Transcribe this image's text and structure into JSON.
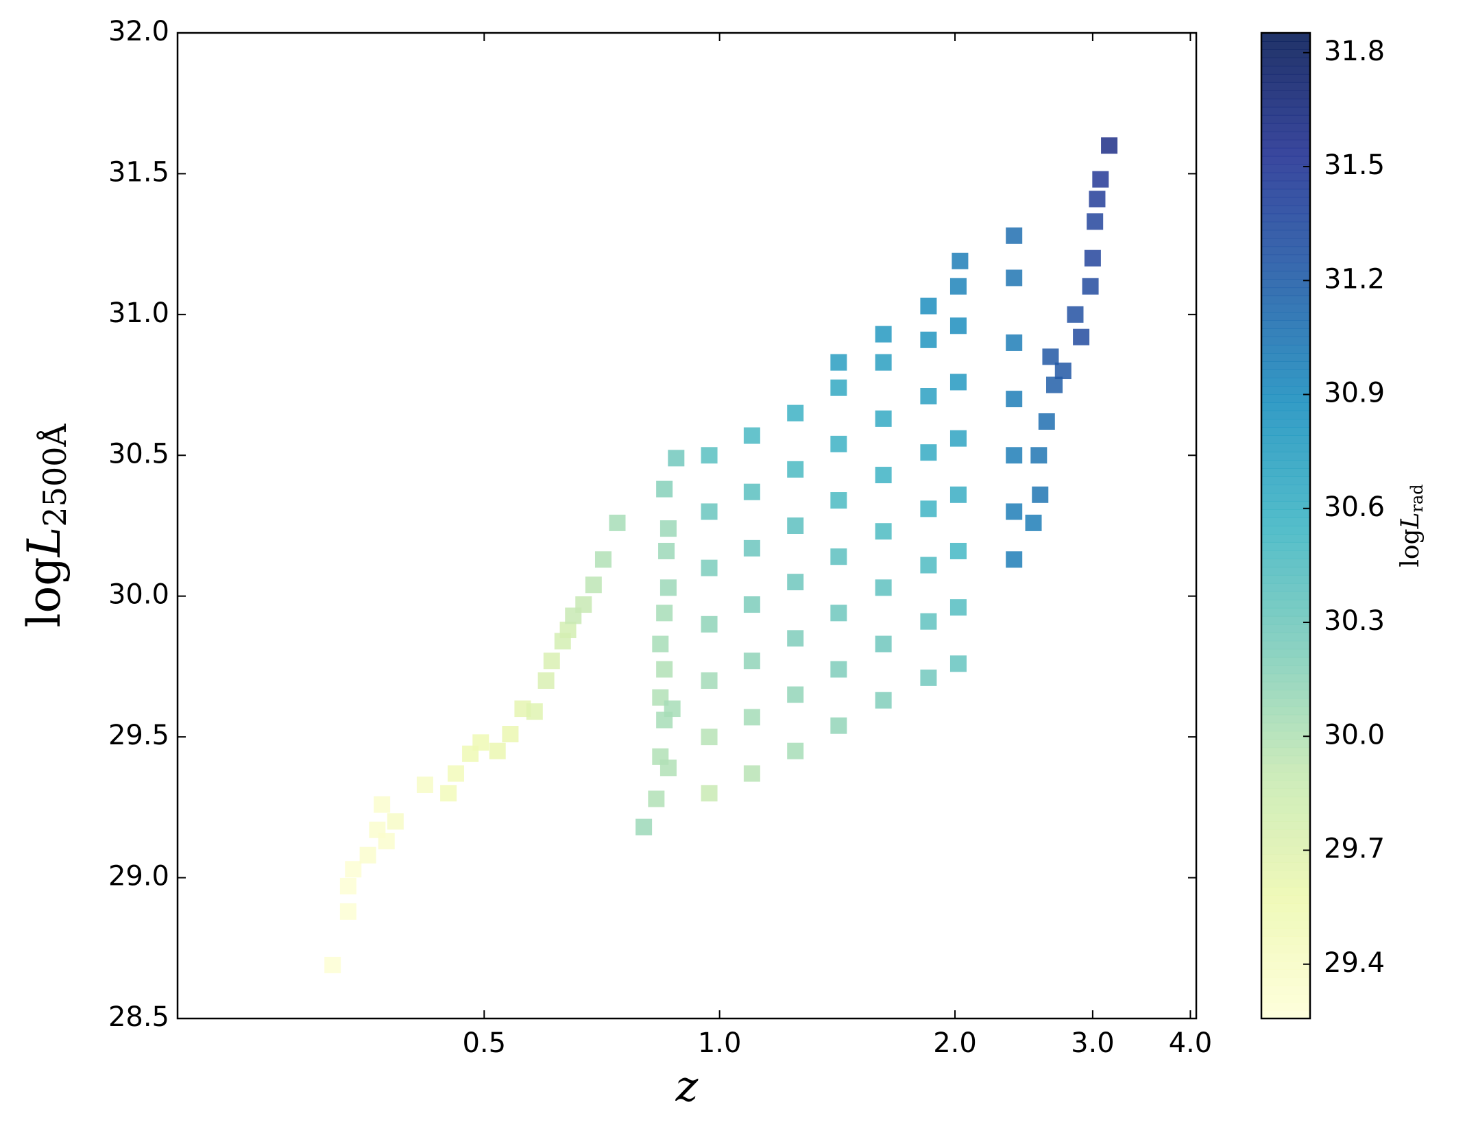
{
  "chart_data": {
    "type": "scatter",
    "xlabel": "z",
    "ylabel": [
      "log",
      "L",
      "2500Å"
    ],
    "colorbar_label": [
      "log",
      "L",
      "rad"
    ],
    "log_x": true,
    "xlim": [
      0.2027,
      4.07
    ],
    "xticks": [
      0.5,
      {
        "value": 1,
        "label": "1.0"
      },
      {
        "value": 2,
        "label": "2.0"
      },
      {
        "value": 3,
        "label": "3.0"
      },
      {
        "value": 4,
        "label": "4.0"
      }
    ],
    "ylim": [
      28.5,
      32.0
    ],
    "yticks": [
      28.5,
      {
        "value": 29,
        "label": "29.0"
      },
      29.5,
      {
        "value": 30,
        "label": "30.0"
      },
      30.5,
      {
        "value": 31,
        "label": "31.0"
      },
      31.5,
      {
        "value": 32,
        "label": "32.0"
      }
    ],
    "clim": [
      29.257,
      31.852
    ],
    "cticks": [
      29.4,
      29.7,
      {
        "value": 30,
        "label": "30.0"
      },
      30.3,
      30.6,
      30.9,
      31.2,
      31.5,
      31.8
    ],
    "colormap": [
      "#ffffd9",
      "#edf8b1",
      "#c7e9b4",
      "#7fcdbb",
      "#41b6c4",
      "#1d91c0",
      "#225ea8",
      "#253494",
      "#081d58"
    ],
    "x": [
      0.32,
      0.335,
      0.335,
      0.34,
      0.355,
      0.365,
      0.37,
      0.375,
      0.385,
      0.42,
      0.45,
      0.46,
      0.48,
      0.495,
      0.52,
      0.54,
      0.56,
      0.58,
      0.6,
      0.61,
      0.63,
      0.64,
      0.65,
      0.67,
      0.69,
      0.71,
      0.74,
      0.8,
      0.83,
      0.84,
      0.85,
      0.84,
      0.85,
      0.84,
      0.85,
      0.86,
      0.855,
      0.86,
      0.85,
      0.88,
      0.87,
      0.86,
      0.97,
      0.97,
      0.97,
      0.97,
      0.97,
      0.97,
      0.97,
      1.1,
      1.1,
      1.1,
      1.1,
      1.1,
      1.1,
      1.1,
      1.25,
      1.25,
      1.25,
      1.25,
      1.25,
      1.25,
      1.25,
      1.42,
      1.42,
      1.42,
      1.42,
      1.42,
      1.42,
      1.42,
      1.42,
      1.62,
      1.62,
      1.62,
      1.62,
      1.62,
      1.62,
      1.62,
      1.62,
      1.85,
      1.85,
      1.85,
      1.85,
      1.85,
      1.85,
      1.85,
      1.85,
      2.02,
      2.02,
      2.02,
      2.02,
      2.02,
      2.02,
      2.02,
      2.02,
      2.03,
      2.38,
      2.38,
      2.38,
      2.38,
      2.38,
      2.38,
      2.38,
      2.52,
      2.57,
      2.56,
      2.62,
      2.68,
      2.65,
      2.75,
      2.85,
      2.9,
      2.98,
      3.0,
      3.02,
      3.04,
      3.07,
      3.15
    ],
    "y": [
      28.69,
      28.88,
      28.97,
      29.03,
      29.08,
      29.17,
      29.26,
      29.13,
      29.2,
      29.33,
      29.3,
      29.37,
      29.44,
      29.48,
      29.45,
      29.51,
      29.6,
      29.59,
      29.7,
      29.77,
      29.84,
      29.88,
      29.93,
      29.97,
      30.04,
      30.13,
      30.26,
      29.18,
      29.28,
      29.43,
      29.56,
      29.64,
      29.74,
      29.83,
      29.94,
      30.03,
      30.16,
      30.24,
      30.38,
      30.49,
      29.6,
      29.39,
      29.3,
      29.5,
      29.7,
      29.9,
      30.1,
      30.3,
      30.5,
      29.37,
      29.57,
      29.77,
      29.97,
      30.17,
      30.37,
      30.57,
      29.45,
      29.65,
      29.85,
      30.05,
      30.25,
      30.45,
      30.65,
      29.54,
      29.74,
      29.94,
      30.14,
      30.34,
      30.54,
      30.74,
      30.83,
      29.63,
      29.83,
      30.03,
      30.23,
      30.43,
      30.63,
      30.83,
      30.93,
      29.71,
      29.91,
      30.11,
      30.31,
      30.51,
      30.71,
      30.91,
      31.03,
      29.76,
      29.96,
      30.16,
      30.36,
      30.56,
      30.76,
      30.96,
      31.1,
      31.19,
      30.13,
      30.3,
      30.5,
      30.7,
      30.9,
      31.13,
      31.28,
      30.26,
      30.36,
      30.5,
      30.62,
      30.75,
      30.85,
      30.8,
      31.0,
      30.92,
      31.1,
      31.2,
      31.33,
      31.41,
      31.48,
      31.6
    ],
    "c": [
      29.3,
      29.3,
      29.3,
      29.3,
      29.35,
      29.35,
      29.35,
      29.35,
      29.4,
      29.4,
      29.5,
      29.5,
      29.55,
      29.55,
      29.6,
      29.6,
      29.65,
      29.7,
      29.75,
      29.75,
      29.8,
      29.8,
      29.9,
      29.9,
      29.95,
      30.0,
      30.05,
      30.1,
      30.0,
      30.0,
      30.05,
      30.0,
      30.0,
      30.05,
      30.05,
      30.1,
      30.1,
      30.1,
      30.2,
      30.3,
      30.05,
      30.0,
      29.89,
      29.98,
      30.07,
      30.16,
      30.25,
      30.34,
      30.43,
      29.97,
      30.06,
      30.15,
      30.24,
      30.33,
      30.42,
      30.51,
      30.05,
      30.14,
      30.23,
      30.32,
      30.41,
      30.5,
      30.59,
      30.14,
      30.23,
      30.32,
      30.41,
      30.5,
      30.59,
      30.68,
      30.77,
      30.22,
      30.31,
      30.4,
      30.49,
      30.58,
      30.67,
      30.76,
      30.81,
      30.3,
      30.39,
      30.48,
      30.57,
      30.66,
      30.75,
      30.84,
      30.9,
      30.36,
      30.45,
      30.54,
      30.63,
      30.72,
      30.81,
      30.9,
      30.96,
      31.0,
      31.0,
      31.0,
      31.0,
      31.0,
      31.0,
      31.05,
      31.1,
      31.0,
      31.05,
      31.05,
      31.1,
      31.2,
      31.25,
      31.25,
      31.3,
      31.35,
      31.35,
      31.4,
      31.4,
      31.45,
      31.5,
      31.6
    ]
  }
}
